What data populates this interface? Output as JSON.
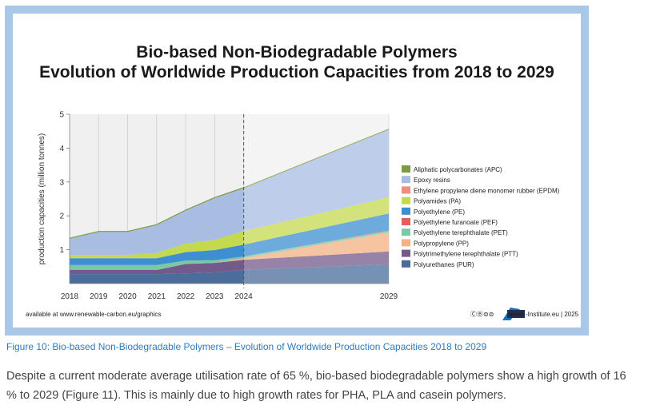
{
  "chart_data": {
    "type": "area",
    "stacked": true,
    "title_line1": "Bio-based Non-Biodegradable Polymers",
    "title_line2": "Evolution of Worldwide Production Capacities from 2018 to 2029",
    "ylabel": "production capacities (million tonnes)",
    "xlabel": "",
    "ylim": [
      0,
      5
    ],
    "yticks": [
      "1",
      "2",
      "3",
      "4",
      "5"
    ],
    "x": [
      2018,
      2019,
      2020,
      2021,
      2022,
      2023,
      2024,
      2029
    ],
    "x_tick_labels": [
      "2018",
      "2019",
      "2020",
      "2021",
      "2022",
      "2023",
      "2024",
      "2029"
    ],
    "forecast_from": 2024,
    "series": [
      {
        "name": "Polyurethanes (PUR)",
        "color": "#4a6d9c",
        "values": [
          0.28,
          0.28,
          0.28,
          0.28,
          0.3,
          0.33,
          0.4,
          0.57
        ]
      },
      {
        "name": "Polytrimethylene terephthalate (PTT)",
        "color": "#735a8a",
        "values": [
          0.12,
          0.12,
          0.12,
          0.12,
          0.28,
          0.28,
          0.3,
          0.38
        ]
      },
      {
        "name": "Polypropylene (PP)",
        "color": "#f4b183",
        "values": [
          0.0,
          0.0,
          0.0,
          0.0,
          0.0,
          0.0,
          0.05,
          0.55
        ]
      },
      {
        "name": "Polyethylene terephthalate (PET)",
        "color": "#7dc8a4",
        "values": [
          0.15,
          0.15,
          0.15,
          0.15,
          0.1,
          0.08,
          0.05,
          0.05
        ]
      },
      {
        "name": "Polyethylene furanoate (PEF)",
        "color": "#e15f5f",
        "values": [
          0.0,
          0.0,
          0.0,
          0.0,
          0.0,
          0.0,
          0.0,
          0.02
        ]
      },
      {
        "name": "Polyethylene (PE)",
        "color": "#3d8fd1",
        "values": [
          0.2,
          0.2,
          0.2,
          0.2,
          0.25,
          0.3,
          0.35,
          0.5
        ]
      },
      {
        "name": "Polyamides (PA)",
        "color": "#c4d94e",
        "values": [
          0.1,
          0.1,
          0.1,
          0.15,
          0.25,
          0.3,
          0.4,
          0.48
        ]
      },
      {
        "name": "Ethylene propylene diene monomer rubber (EPDM)",
        "color": "#ef8c82",
        "values": [
          0.0,
          0.0,
          0.0,
          0.0,
          0.0,
          0.0,
          0.0,
          0.0
        ]
      },
      {
        "name": "Epoxy resins",
        "color": "#a9bde3",
        "values": [
          0.48,
          0.68,
          0.68,
          0.83,
          0.98,
          1.24,
          1.27,
          2.0
        ]
      },
      {
        "name": "Aliphatic polycarbonates (APC)",
        "color": "#7c9b3c",
        "values": [
          0.01,
          0.01,
          0.01,
          0.01,
          0.01,
          0.01,
          0.01,
          0.01
        ]
      }
    ],
    "legend_position": "right",
    "grid": "vertical"
  },
  "footer": {
    "source": "available at www.renewable-carbon.eu/graphics",
    "license_icons": "ⒸⒷ⊜⊜",
    "logo_text": "nova",
    "credit": "-Institute.eu | 2025"
  },
  "caption": "Figure 10:  Bio-based Non-Biodegradable Polymers – Evolution of Worldwide Production Capacities 2018 to 2029",
  "body_text": "Despite a current moderate average utilisation rate of 65 %, bio-based biodegradable polymers show a high growth of 16 % to 2029 (Figure 11). This is mainly due to high growth rates for PHA, PLA and casein polymers."
}
